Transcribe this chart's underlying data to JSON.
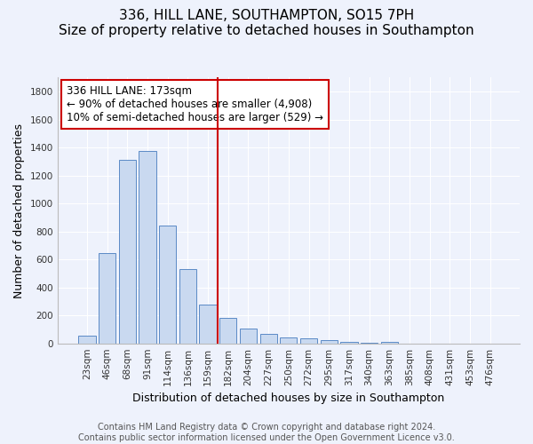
{
  "title": "336, HILL LANE, SOUTHAMPTON, SO15 7PH",
  "subtitle": "Size of property relative to detached houses in Southampton",
  "xlabel": "Distribution of detached houses by size in Southampton",
  "ylabel": "Number of detached properties",
  "bar_labels": [
    "23sqm",
    "46sqm",
    "68sqm",
    "91sqm",
    "114sqm",
    "136sqm",
    "159sqm",
    "182sqm",
    "204sqm",
    "227sqm",
    "250sqm",
    "272sqm",
    "295sqm",
    "317sqm",
    "340sqm",
    "363sqm",
    "385sqm",
    "408sqm",
    "431sqm",
    "453sqm",
    "476sqm"
  ],
  "bar_values": [
    55,
    645,
    1310,
    1375,
    845,
    530,
    275,
    185,
    105,
    65,
    40,
    35,
    25,
    10,
    3,
    12,
    0,
    0,
    0,
    0,
    0
  ],
  "bar_color": "#c9d9f0",
  "bar_edgecolor": "#5a8ac6",
  "vline_x": 7.0,
  "vline_color": "#cc0000",
  "annotation_line1": "336 HILL LANE: 173sqm",
  "annotation_line2": "← 90% of detached houses are smaller (4,908)",
  "annotation_line3": "10% of semi-detached houses are larger (529) →",
  "ylim": [
    0,
    1900
  ],
  "yticks": [
    0,
    200,
    400,
    600,
    800,
    1000,
    1200,
    1400,
    1600,
    1800
  ],
  "footnote": "Contains HM Land Registry data © Crown copyright and database right 2024.\nContains public sector information licensed under the Open Government Licence v3.0.",
  "bg_color": "#eef2fc",
  "grid_color": "#ffffff",
  "title_fontsize": 11,
  "subtitle_fontsize": 9.5,
  "tick_fontsize": 7.5,
  "label_fontsize": 9,
  "annotation_fontsize": 8.5,
  "footnote_fontsize": 7
}
